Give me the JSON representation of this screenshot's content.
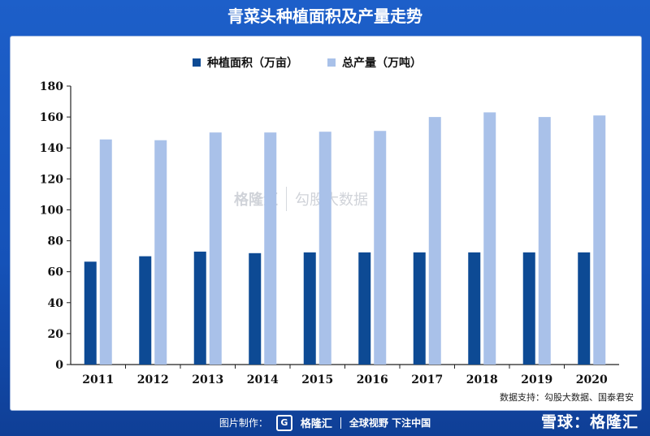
{
  "title": "青菜头种植面积及产量走势",
  "source": "数据支持：勾股大数据、国泰君安",
  "watermark": {
    "brand": "格隆汇",
    "data_brand": "勾股大数据"
  },
  "footer": {
    "made_by": "图片制作：",
    "brand": "格隆汇",
    "slogan": "全球视野 下注中国"
  },
  "xueqiu": "雪球：格隆汇",
  "colors": {
    "area": "#0d4a94",
    "output": "#a9c1e9",
    "background": "#1a59c2"
  },
  "chart_data": {
    "type": "bar",
    "categories": [
      "2011",
      "2012",
      "2013",
      "2014",
      "2015",
      "2016",
      "2017",
      "2018",
      "2019",
      "2020"
    ],
    "series": [
      {
        "name": "种植面积（万亩）",
        "values": [
          66.5,
          70,
          73,
          72,
          72.5,
          72.5,
          72.5,
          72.5,
          72.5,
          72.5
        ]
      },
      {
        "name": "总产量（万吨）",
        "values": [
          145.5,
          145,
          150,
          150,
          150.5,
          151,
          160,
          163,
          160,
          161
        ]
      }
    ],
    "ylim": [
      0,
      180
    ],
    "yticks": [
      0,
      20,
      40,
      60,
      80,
      100,
      120,
      140,
      160,
      180
    ],
    "legend_position": "top-center",
    "grid": false
  }
}
